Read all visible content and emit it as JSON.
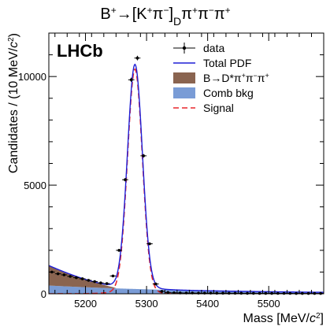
{
  "chart_data": {
    "type": "line",
    "title_main": "B",
    "title_sup_plus": "+",
    "title_arrow": "→[K",
    "title_k_sup": "+",
    "title_pi": "π",
    "title_pi_sup": "−",
    "title_bracket": "]",
    "title_sub_d": "D",
    "title_tail": "π",
    "title_tail_sup1": "+",
    "title_tail_pi2": "π",
    "title_tail_sup2": "−",
    "title_tail_pi3": "π",
    "title_tail_sup3": "+",
    "experiment_label": "LHCb",
    "xlabel": "Mass [MeV/",
    "xlabel_c": "c",
    "xlabel_sup": "2",
    "xlabel_end": "]",
    "ylabel": "Candidates / (10 MeV/",
    "ylabel_c": "c",
    "ylabel_sup": "2",
    "ylabel_end": ")",
    "xlim": [
      5140,
      5590
    ],
    "ylim": [
      0,
      12000
    ],
    "x_ticks": [
      5200,
      5300,
      5400,
      5500
    ],
    "x_tick_labels": [
      "5200",
      "5300",
      "5400",
      "5500"
    ],
    "y_ticks": [
      0,
      5000,
      10000
    ],
    "y_tick_labels": [
      "0",
      "5000",
      "10000"
    ],
    "legend": {
      "placement": "top-right",
      "data": "data",
      "total_pdf": "Total PDF",
      "bkg_partial": "B→D*π",
      "bkg_partial_sup1": "+",
      "bkg_partial_pi2": "π",
      "bkg_partial_sup2": "−",
      "bkg_partial_pi3": "π",
      "bkg_partial_sup3": "+",
      "comb_bkg": "Comb bkg",
      "signal": "Signal"
    },
    "colors": {
      "total_pdf": "#1f1fd6",
      "signal": "#e8262b",
      "partial_bkg": "#8a6450",
      "comb_bkg": "#7a9cd6"
    },
    "data_points": {
      "x": [
        5145,
        5155,
        5165,
        5175,
        5185,
        5195,
        5205,
        5215,
        5225,
        5235,
        5245,
        5255,
        5265,
        5275,
        5285,
        5295,
        5305,
        5315,
        5325,
        5335,
        5345,
        5355,
        5365,
        5375,
        5385,
        5395,
        5405,
        5415,
        5425,
        5435,
        5445,
        5455,
        5465,
        5475,
        5485,
        5495,
        5505,
        5515,
        5525,
        5535,
        5545,
        5555,
        5565,
        5575,
        5585
      ],
      "y": [
        1000,
        920,
        870,
        800,
        740,
        690,
        620,
        560,
        500,
        470,
        820,
        2000,
        5250,
        9850,
        10850,
        6350,
        2300,
        450,
        110,
        60,
        45,
        40,
        35,
        35,
        30,
        30,
        30,
        28,
        28,
        25,
        25,
        25,
        22,
        22,
        20,
        20,
        20,
        18,
        18,
        18,
        15,
        15,
        15,
        15,
        15
      ],
      "yerr": [
        35,
        32,
        30,
        30,
        28,
        27,
        26,
        24,
        23,
        22,
        30,
        45,
        75,
        100,
        105,
        80,
        48,
        22,
        12,
        9,
        8,
        8,
        7,
        7,
        6,
        6,
        6,
        6,
        6,
        6,
        6,
        6,
        5,
        5,
        5,
        5,
        5,
        5,
        5,
        5,
        4,
        4,
        4,
        4,
        4
      ]
    },
    "signal_model": {
      "mean": 5281,
      "sigma": 12,
      "peak": 11000
    },
    "partial_bkg_model": {
      "start": 1300,
      "endpoint": 5250
    },
    "comb_bkg_model": {
      "start": 380,
      "slope_per_mev": -0.0065
    }
  }
}
